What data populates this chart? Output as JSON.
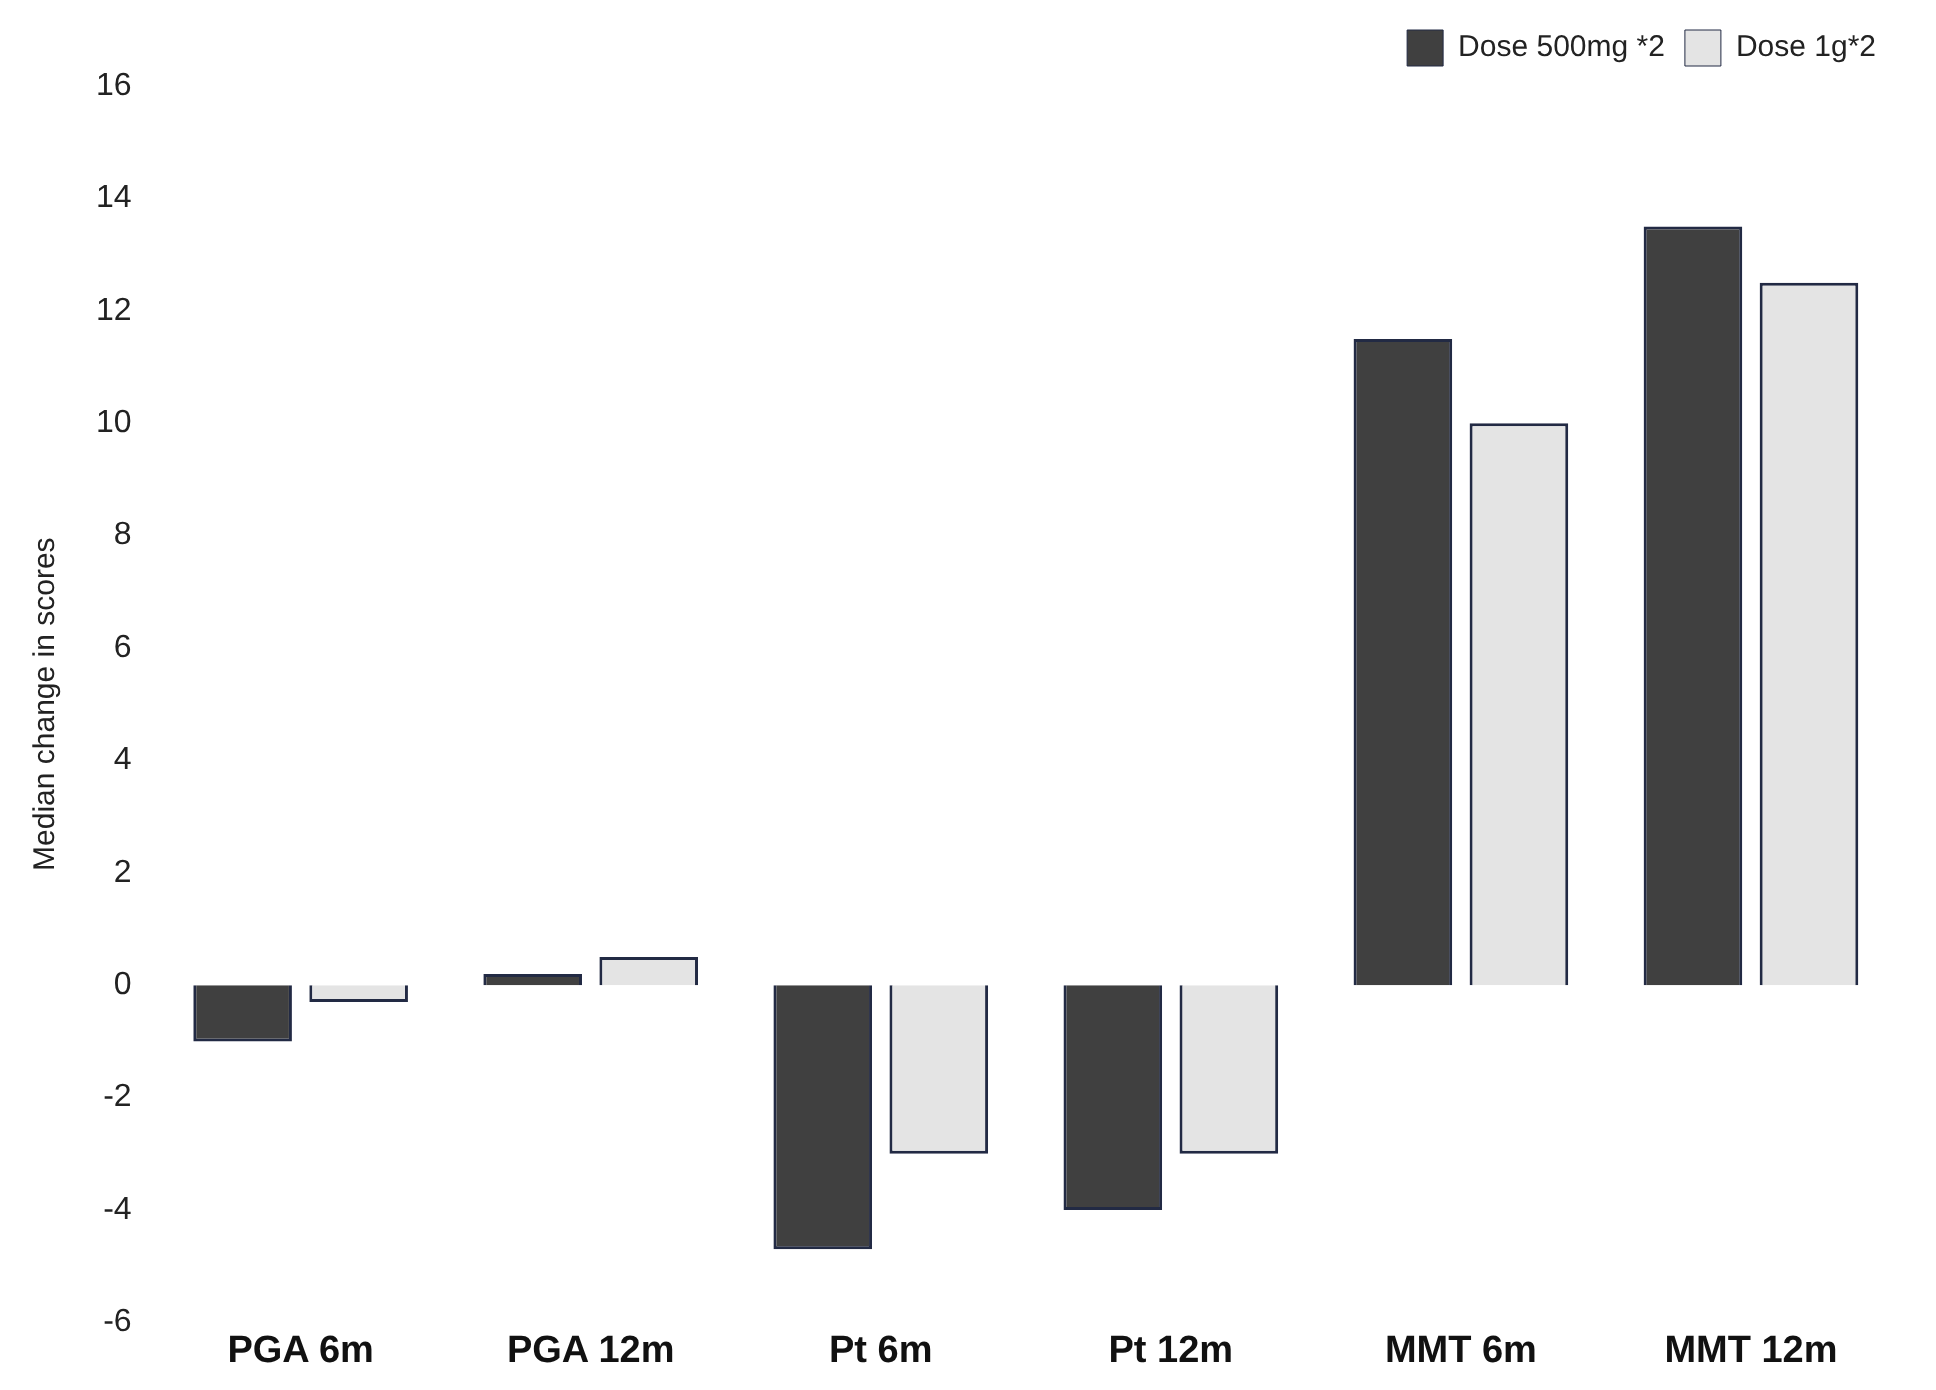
{
  "chart_data": {
    "type": "bar",
    "ylabel": "Median change in scores",
    "categories": [
      "PGA 6m",
      "PGA 12m",
      "Pt 6m",
      "Pt 12m",
      "MMT 6m",
      "MMT 12m"
    ],
    "series": [
      {
        "name": "Dose 500mg *2",
        "color": "#404040",
        "values": [
          -1,
          0.2,
          -4.7,
          -4,
          11.5,
          13.5
        ]
      },
      {
        "name": "Dose 1g*2",
        "color": "#e4e4e4",
        "values": [
          -0.3,
          0.5,
          -3,
          -3,
          10,
          12.5
        ]
      }
    ],
    "ylim": [
      -6,
      16
    ],
    "yticks": [
      -6,
      -4,
      -2,
      0,
      2,
      4,
      6,
      8,
      10,
      12,
      14,
      16
    ],
    "grid": false,
    "legend": "top right"
  }
}
